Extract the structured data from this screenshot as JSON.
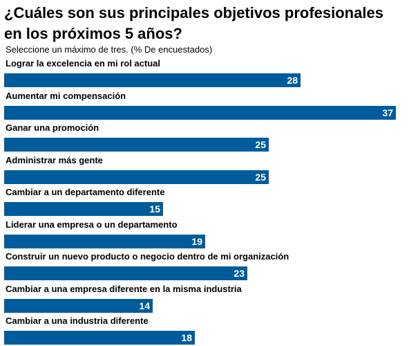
{
  "chart_data": {
    "type": "bar",
    "orientation": "horizontal",
    "title": "¿Cuáles son sus principales objetivos profesionales en los próximos 5 años?",
    "subtitle": "Seleccione un máximo de tres. (% De encuestados)",
    "categories": [
      "Lograr la excelencia en mi rol actual",
      "Aumentar mi compensación",
      "Ganar una promoción",
      "Administrar más gente",
      "Cambiar a un departamento diferente",
      "Liderar una empresa o un departamento",
      "Construir un nuevo producto o negocio dentro de mi organización",
      "Cambiar a una empresa diferente en la misma industria",
      "Cambiar a una industria diferente"
    ],
    "values": [
      28,
      37,
      25,
      25,
      15,
      19,
      23,
      14,
      18
    ],
    "xlim": [
      0,
      37
    ],
    "grid": false,
    "legend": "none",
    "bar_color": "#005b9a",
    "value_label_color": "#ffffff"
  }
}
